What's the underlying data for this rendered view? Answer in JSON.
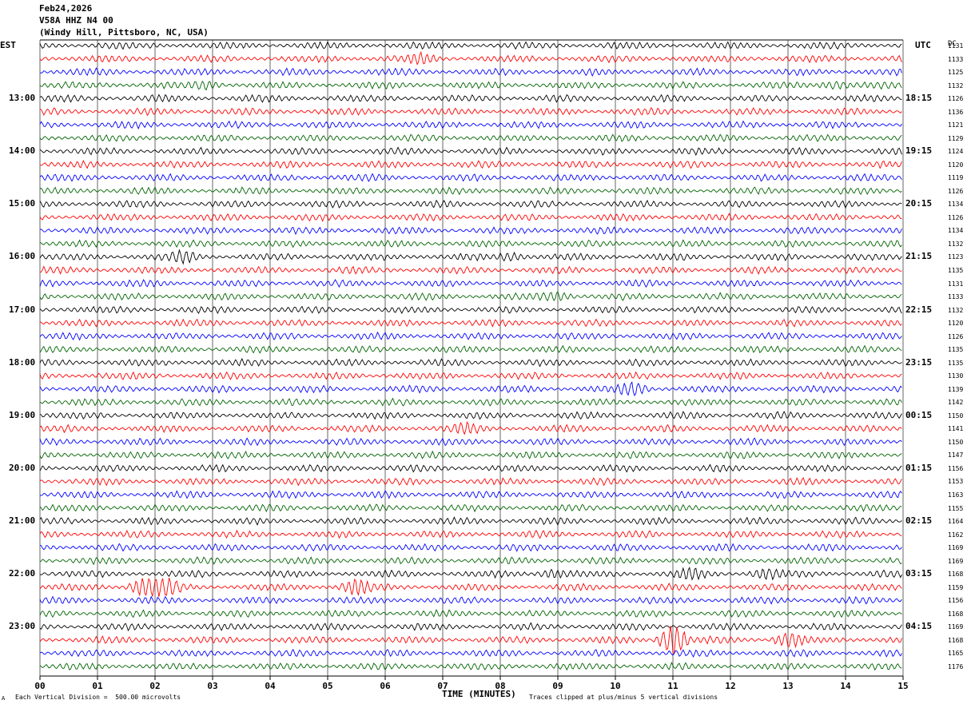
{
  "header": {
    "date": "Feb24,2026",
    "station": "V58A HHZ N4 00",
    "location": "(Windy Hill, Pittsboro, NC, USA)"
  },
  "left_tz": "EST",
  "right_tz": "UTC",
  "dc_label": "DC",
  "footer": {
    "xlabel": "TIME (MINUTES)",
    "scale_note": "Each Vertical Division =  500.00 microvolts",
    "clip_note": "Traces clipped at plus/minus 5 vertical divisions",
    "corner_mark": "A"
  },
  "colors": {
    "cycle": [
      "#000000",
      "#ff0000",
      "#0000ff",
      "#006400"
    ],
    "grid": "#000000"
  },
  "chart_data": {
    "type": "line",
    "title": "Feb24,2026 V58A HHZ N4 00",
    "xlabel": "TIME (MINUTES)",
    "x_ticks": [
      "00",
      "01",
      "02",
      "03",
      "04",
      "05",
      "06",
      "07",
      "08",
      "09",
      "10",
      "11",
      "12",
      "13",
      "14",
      "15"
    ],
    "xlim": [
      0,
      15
    ],
    "left_hour_labels": [
      {
        "row": 4,
        "text": "13:00"
      },
      {
        "row": 8,
        "text": "14:00"
      },
      {
        "row": 12,
        "text": "15:00"
      },
      {
        "row": 16,
        "text": "16:00"
      },
      {
        "row": 20,
        "text": "17:00"
      },
      {
        "row": 24,
        "text": "18:00"
      },
      {
        "row": 28,
        "text": "19:00"
      },
      {
        "row": 32,
        "text": "20:00"
      },
      {
        "row": 36,
        "text": "21:00"
      },
      {
        "row": 40,
        "text": "22:00"
      },
      {
        "row": 44,
        "text": "23:00"
      }
    ],
    "right_hour_labels": [
      {
        "row": 4,
        "text": "18:15"
      },
      {
        "row": 8,
        "text": "19:15"
      },
      {
        "row": 12,
        "text": "20:15"
      },
      {
        "row": 16,
        "text": "21:15"
      },
      {
        "row": 20,
        "text": "22:15"
      },
      {
        "row": 24,
        "text": "23:15"
      },
      {
        "row": 28,
        "text": "00:15"
      },
      {
        "row": 32,
        "text": "01:15"
      },
      {
        "row": 36,
        "text": "02:15"
      },
      {
        "row": 40,
        "text": "03:15"
      },
      {
        "row": 44,
        "text": "04:15"
      }
    ],
    "dc_offsets": [
      "1131",
      "1133",
      "1125",
      "1132",
      "1126",
      "1136",
      "1121",
      "1129",
      "1124",
      "1120",
      "1119",
      "1126",
      "1134",
      "1126",
      "1134",
      "1132",
      "1123",
      "1135",
      "1131",
      "1133",
      "1132",
      "1120",
      "1126",
      "1135",
      "1135",
      "1130",
      "1139",
      "1142",
      "1150",
      "1141",
      "1150",
      "1147",
      "1156",
      "1153",
      "1163",
      "1155",
      "1164",
      "1162",
      "1169",
      "1169",
      "1168",
      "1159",
      "1156",
      "1168",
      "1169",
      "1168",
      "1165",
      "1176"
    ],
    "events": [
      {
        "row": 1,
        "minute": 6.6,
        "amp": 1.0
      },
      {
        "row": 3,
        "minute": 2.9,
        "amp": 0.8
      },
      {
        "row": 3,
        "minute": 13.8,
        "amp": 0.8
      },
      {
        "row": 16,
        "minute": 2.5,
        "amp": 1.0
      },
      {
        "row": 16,
        "minute": 8.2,
        "amp": 0.8
      },
      {
        "row": 19,
        "minute": 9.0,
        "amp": 0.8
      },
      {
        "row": 26,
        "minute": 10.3,
        "amp": 1.4
      },
      {
        "row": 29,
        "minute": 7.4,
        "amp": 1.0
      },
      {
        "row": 40,
        "minute": 8.9,
        "amp": 0.8
      },
      {
        "row": 40,
        "minute": 11.3,
        "amp": 1.0
      },
      {
        "row": 40,
        "minute": 12.6,
        "amp": 1.0
      },
      {
        "row": 41,
        "minute": 1.8,
        "amp": 2.0
      },
      {
        "row": 41,
        "minute": 2.2,
        "amp": 1.8
      },
      {
        "row": 41,
        "minute": 5.5,
        "amp": 1.6
      },
      {
        "row": 45,
        "minute": 11.0,
        "amp": 3.5
      },
      {
        "row": 45,
        "minute": 13.0,
        "amp": 1.5
      }
    ]
  }
}
